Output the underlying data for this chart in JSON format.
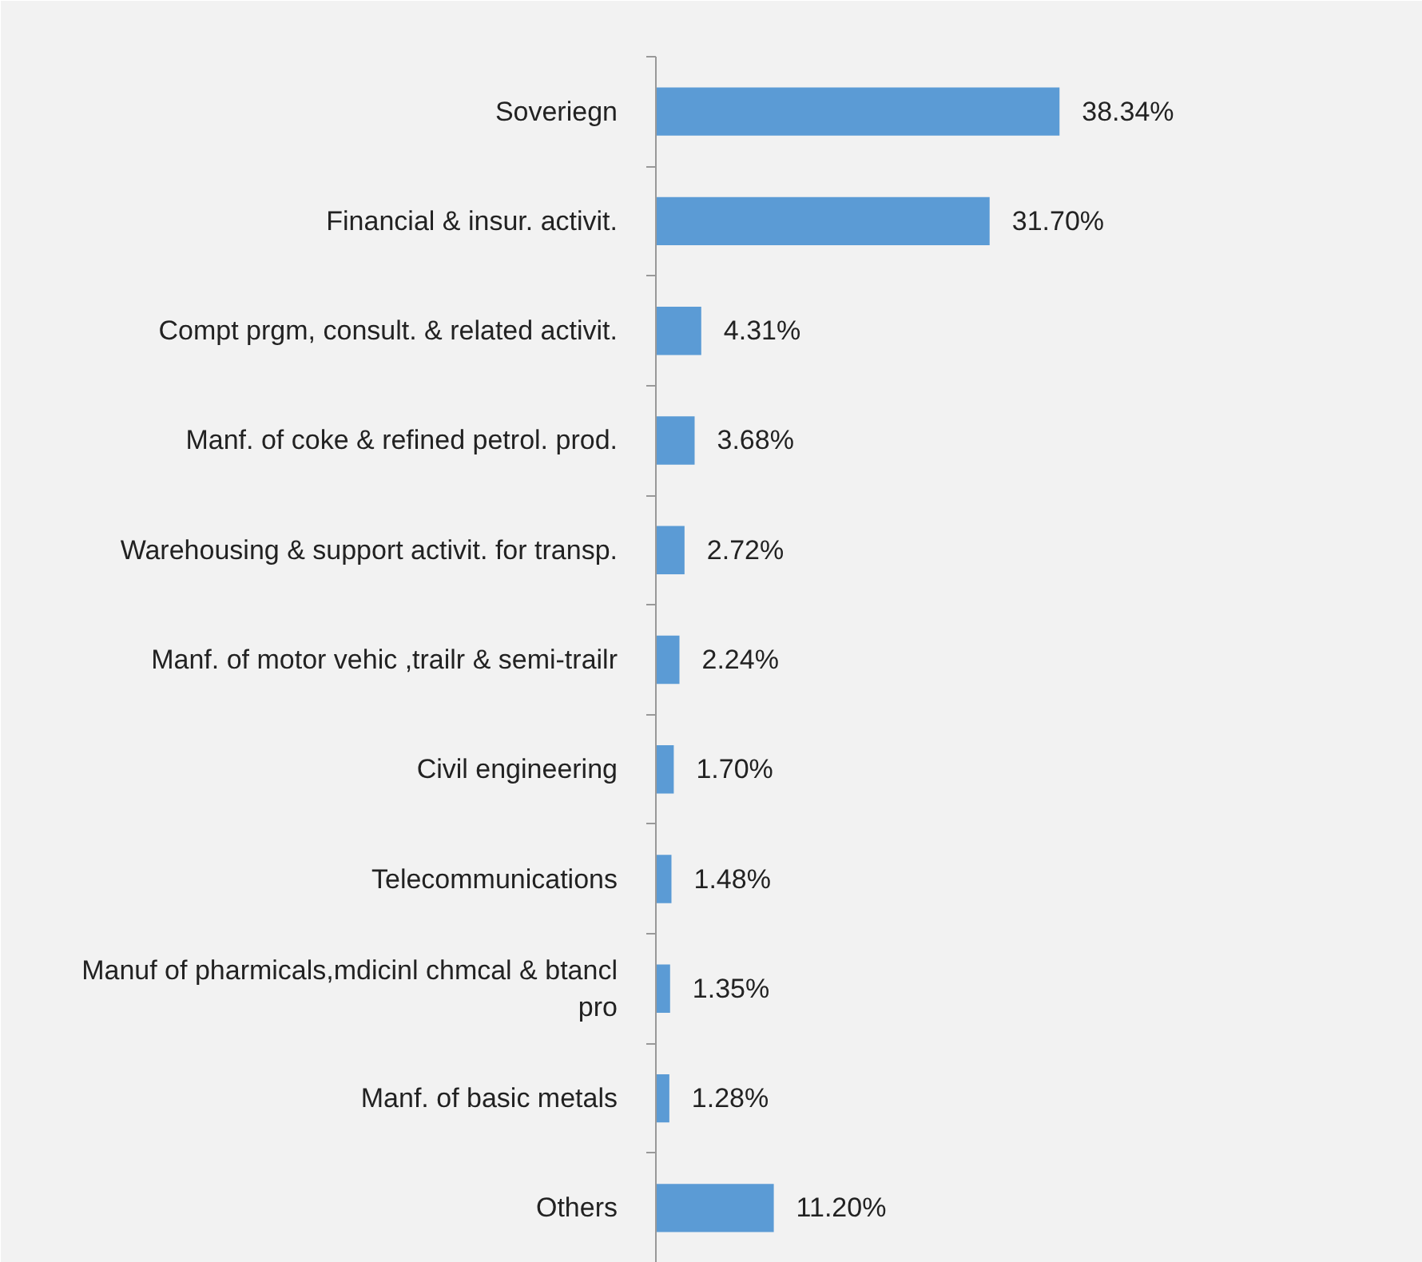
{
  "chart_data": {
    "type": "bar",
    "orientation": "horizontal",
    "categories": [
      "Soveriegn",
      "Financial & insur. activit.",
      "Compt prgm, consult. & related activit.",
      "Manf. of coke & refined petrol. prod.",
      "Warehousing & support activit. for transp.",
      "Manf. of motor vehic ,trailr & semi-trailr",
      "Civil engineering",
      "Telecommunications",
      "Manuf of pharmicals,mdicinl chmcal & btancl pro",
      "Manf. of basic metals",
      "Others"
    ],
    "values": [
      38.34,
      31.7,
      4.31,
      3.68,
      2.72,
      2.24,
      1.7,
      1.48,
      1.35,
      1.28,
      11.2
    ],
    "value_labels": [
      "38.34%",
      "31.70%",
      "4.31%",
      "3.68%",
      "2.72%",
      "2.24%",
      "1.70%",
      "1.48%",
      "1.35%",
      "1.28%",
      "11.20%"
    ],
    "color": "#5b9bd5",
    "grid": false
  }
}
